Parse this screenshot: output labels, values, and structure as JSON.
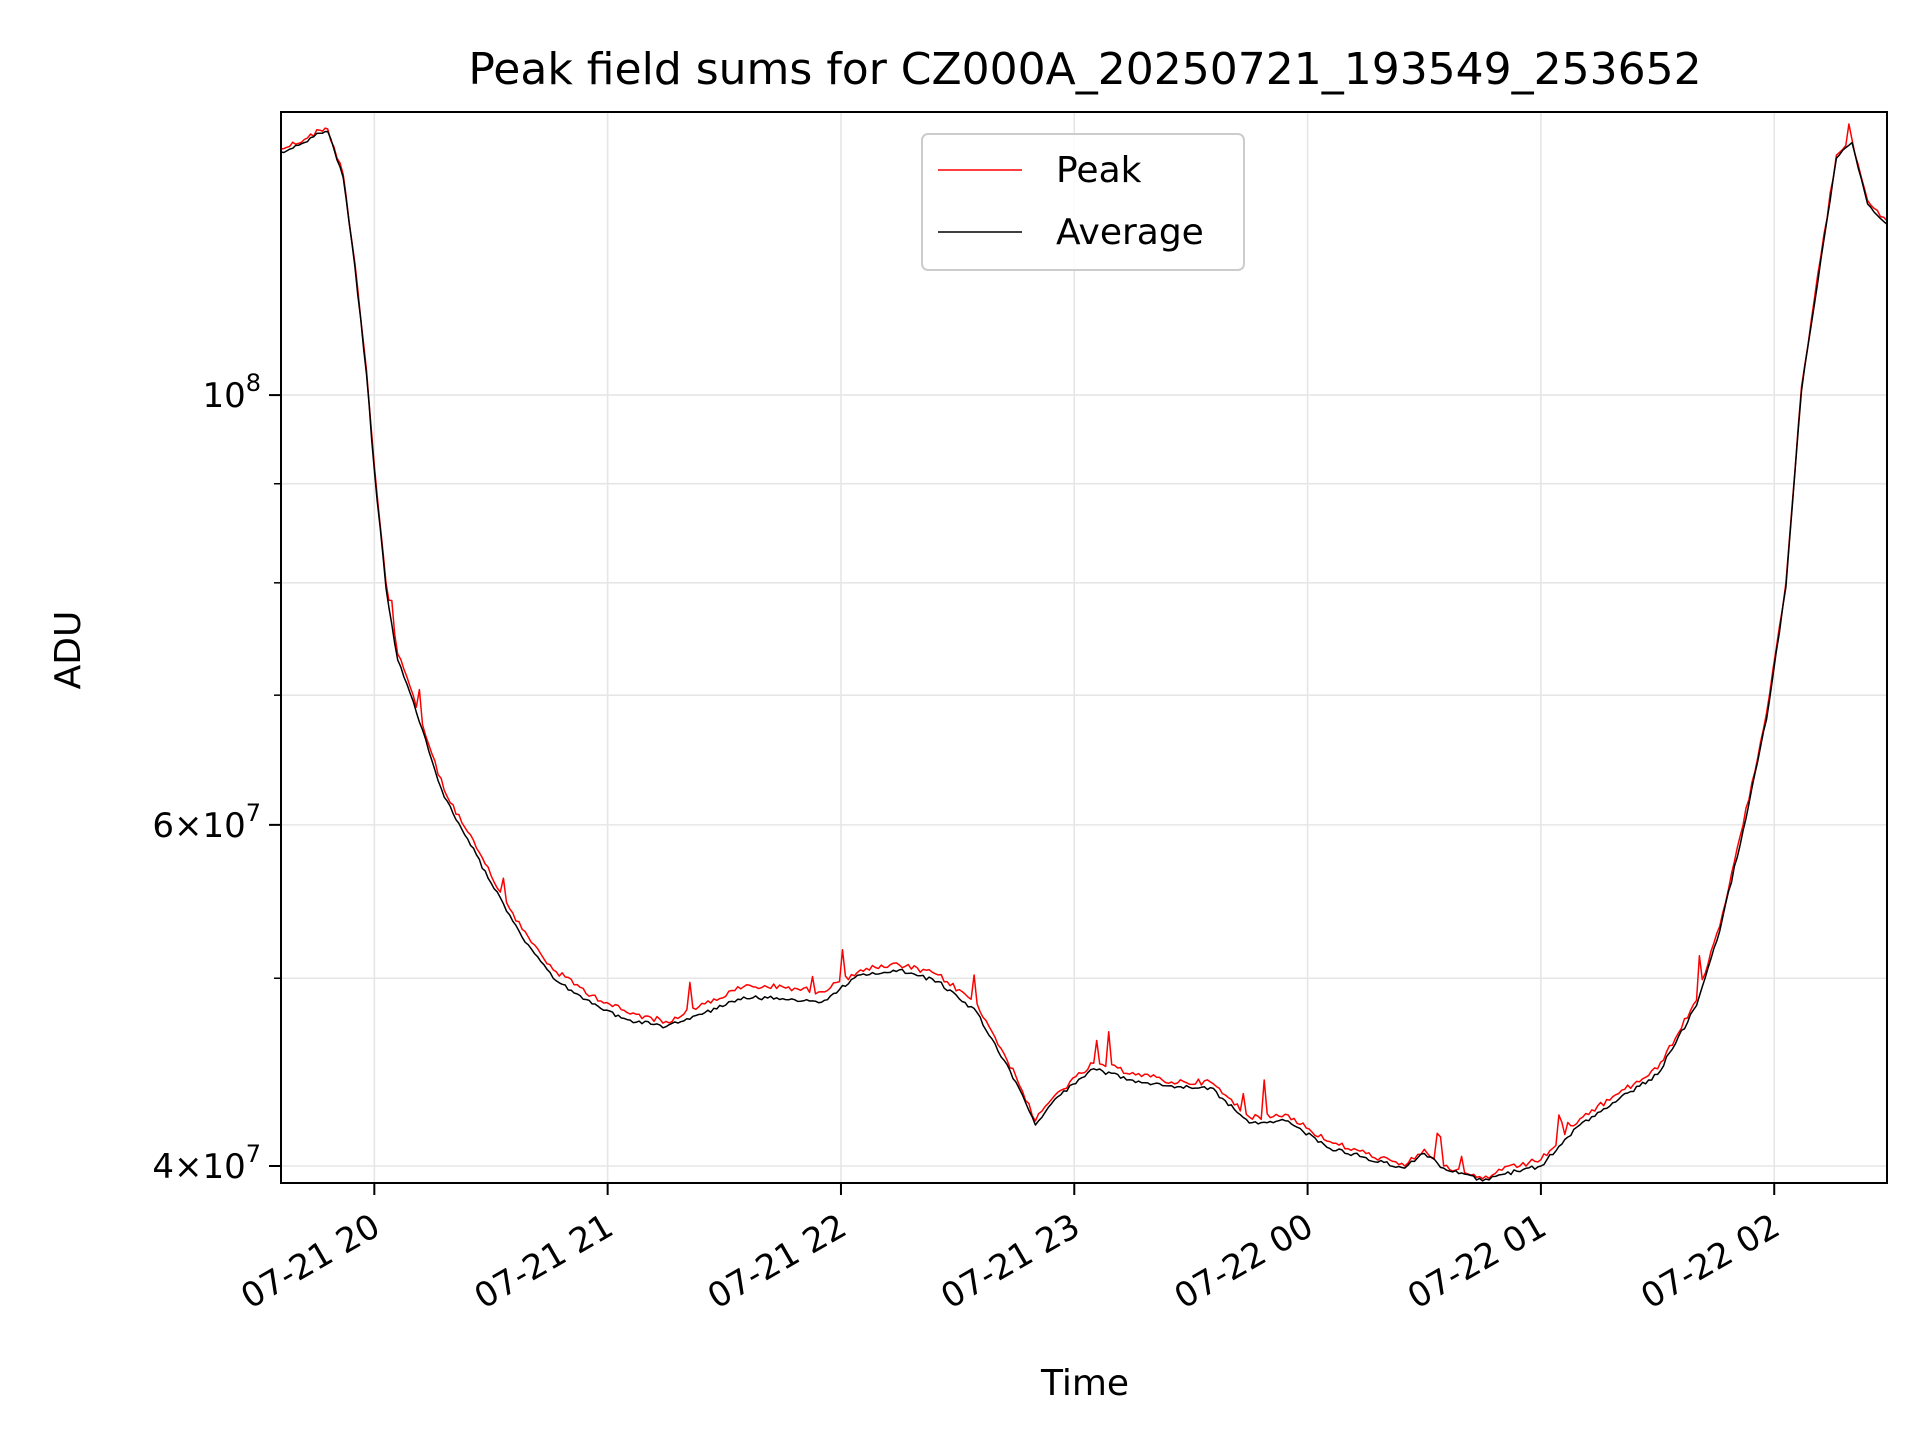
{
  "colors": {
    "peak": "#ff0000",
    "average": "#000000",
    "grid": "#e6e6e6",
    "axis": "#000000"
  },
  "chart_data": {
    "type": "line",
    "title": "Peak field sums for CZ000A_20250721_193549_253652",
    "xlabel": "Time",
    "ylabel": "ADU",
    "yscale": "log",
    "grid": true,
    "legend_position": "top-center",
    "xlim": [
      "2025-07-21 19:36",
      "2025-07-22 02:29"
    ],
    "ylim": [
      39200000,
      140000000
    ],
    "x_ticks": [
      {
        "t": "2025-07-21 20:00",
        "label": "07-21 20"
      },
      {
        "t": "2025-07-21 21:00",
        "label": "07-21 21"
      },
      {
        "t": "2025-07-21 22:00",
        "label": "07-21 22"
      },
      {
        "t": "2025-07-21 23:00",
        "label": "07-21 23"
      },
      {
        "t": "2025-07-22 00:00",
        "label": "07-22 00"
      },
      {
        "t": "2025-07-22 01:00",
        "label": "07-22 01"
      },
      {
        "t": "2025-07-22 02:00",
        "label": "07-22 02"
      }
    ],
    "y_ticks": [
      {
        "v": 40000000,
        "base": "4×10",
        "exp": "7"
      },
      {
        "v": 60000000,
        "base": "6×10",
        "exp": "7"
      },
      {
        "v": 100000000,
        "base": "10",
        "exp": "8"
      }
    ],
    "series": [
      {
        "name": "Peak",
        "color": "#ff0000",
        "x": [
          "2025-07-21 19:36",
          "2025-07-21 19:42",
          "2025-07-21 19:46",
          "2025-07-21 19:48",
          "2025-07-21 19:52",
          "2025-07-21 19:55",
          "2025-07-21 19:58",
          "2025-07-21 20:00",
          "2025-07-21 20:03",
          "2025-07-21 20:06",
          "2025-07-21 20:10",
          "2025-07-21 20:14",
          "2025-07-21 20:18",
          "2025-07-21 20:24",
          "2025-07-21 20:30",
          "2025-07-21 20:38",
          "2025-07-21 20:46",
          "2025-07-21 20:56",
          "2025-07-21 21:05",
          "2025-07-21 21:15",
          "2025-07-21 21:25",
          "2025-07-21 21:35",
          "2025-07-21 21:45",
          "2025-07-21 21:55",
          "2025-07-21 22:05",
          "2025-07-21 22:15",
          "2025-07-21 22:25",
          "2025-07-21 22:35",
          "2025-07-21 22:45",
          "2025-07-21 22:50",
          "2025-07-21 22:55",
          "2025-07-21 23:05",
          "2025-07-21 23:15",
          "2025-07-21 23:25",
          "2025-07-21 23:35",
          "2025-07-21 23:45",
          "2025-07-21 23:55",
          "2025-07-22 00:05",
          "2025-07-22 00:15",
          "2025-07-22 00:25",
          "2025-07-22 00:30",
          "2025-07-22 00:35",
          "2025-07-22 00:45",
          "2025-07-22 00:50",
          "2025-07-22 01:00",
          "2025-07-22 01:10",
          "2025-07-22 01:20",
          "2025-07-22 01:30",
          "2025-07-22 01:40",
          "2025-07-22 01:46",
          "2025-07-22 01:52",
          "2025-07-22 01:58",
          "2025-07-22 02:03",
          "2025-07-22 02:07",
          "2025-07-22 02:12",
          "2025-07-22 02:16",
          "2025-07-22 02:20",
          "2025-07-22 02:24",
          "2025-07-22 02:29"
        ],
        "y": [
          134000000,
          135500000,
          137000000,
          137200000,
          130000000,
          117000000,
          103000000,
          92000000,
          80000000,
          73500000,
          70000000,
          66000000,
          62500000,
          59500000,
          56500000,
          53000000,
          50500000,
          49000000,
          48000000,
          47500000,
          48500000,
          49500000,
          49500000,
          49200000,
          50500000,
          50800000,
          50200000,
          48500000,
          44500000,
          42200000,
          43500000,
          45200000,
          44700000,
          44200000,
          44200000,
          42400000,
          42500000,
          41200000,
          40600000,
          40000000,
          40800000,
          40000000,
          39400000,
          39800000,
          40300000,
          42300000,
          43600000,
          44900000,
          48700000,
          53200000,
          60000000,
          68500000,
          80000000,
          101000000,
          118000000,
          133000000,
          135500000,
          126000000,
          123000000
        ]
      },
      {
        "name": "Average",
        "color": "#000000",
        "x": [
          "2025-07-21 19:36",
          "2025-07-21 19:42",
          "2025-07-21 19:46",
          "2025-07-21 19:48",
          "2025-07-21 19:52",
          "2025-07-21 19:55",
          "2025-07-21 19:58",
          "2025-07-21 20:00",
          "2025-07-21 20:03",
          "2025-07-21 20:06",
          "2025-07-21 20:10",
          "2025-07-21 20:14",
          "2025-07-21 20:18",
          "2025-07-21 20:24",
          "2025-07-21 20:30",
          "2025-07-21 20:38",
          "2025-07-21 20:46",
          "2025-07-21 20:56",
          "2025-07-21 21:05",
          "2025-07-21 21:15",
          "2025-07-21 21:25",
          "2025-07-21 21:35",
          "2025-07-21 21:45",
          "2025-07-21 21:55",
          "2025-07-21 22:05",
          "2025-07-21 22:15",
          "2025-07-21 22:25",
          "2025-07-21 22:35",
          "2025-07-21 22:45",
          "2025-07-21 22:50",
          "2025-07-21 22:55",
          "2025-07-21 23:05",
          "2025-07-21 23:15",
          "2025-07-21 23:25",
          "2025-07-21 23:35",
          "2025-07-21 23:45",
          "2025-07-21 23:55",
          "2025-07-22 00:05",
          "2025-07-22 00:15",
          "2025-07-22 00:25",
          "2025-07-22 00:30",
          "2025-07-22 00:35",
          "2025-07-22 00:45",
          "2025-07-22 00:50",
          "2025-07-22 01:00",
          "2025-07-22 01:10",
          "2025-07-22 01:20",
          "2025-07-22 01:30",
          "2025-07-22 01:40",
          "2025-07-22 01:46",
          "2025-07-22 01:52",
          "2025-07-22 01:58",
          "2025-07-22 02:03",
          "2025-07-22 02:07",
          "2025-07-22 02:12",
          "2025-07-22 02:16",
          "2025-07-22 02:20",
          "2025-07-22 02:24",
          "2025-07-22 02:29"
        ],
        "y": [
          133500000,
          135000000,
          136500000,
          136800000,
          129500000,
          116500000,
          102500000,
          91500000,
          79500000,
          73000000,
          69500000,
          65500000,
          62000000,
          59000000,
          56000000,
          52500000,
          50000000,
          48500000,
          47600000,
          47200000,
          48000000,
          48900000,
          48800000,
          48600000,
          50200000,
          50500000,
          49800000,
          48000000,
          44200000,
          42000000,
          43300000,
          44900000,
          44300000,
          44000000,
          43900000,
          42100000,
          42200000,
          40900000,
          40400000,
          39900000,
          40600000,
          39900000,
          39300000,
          39600000,
          40000000,
          42000000,
          43300000,
          44600000,
          48400000,
          52900000,
          59600000,
          68000000,
          79600000,
          100500000,
          117500000,
          132500000,
          135000000,
          125500000,
          122500000
        ]
      }
    ]
  }
}
